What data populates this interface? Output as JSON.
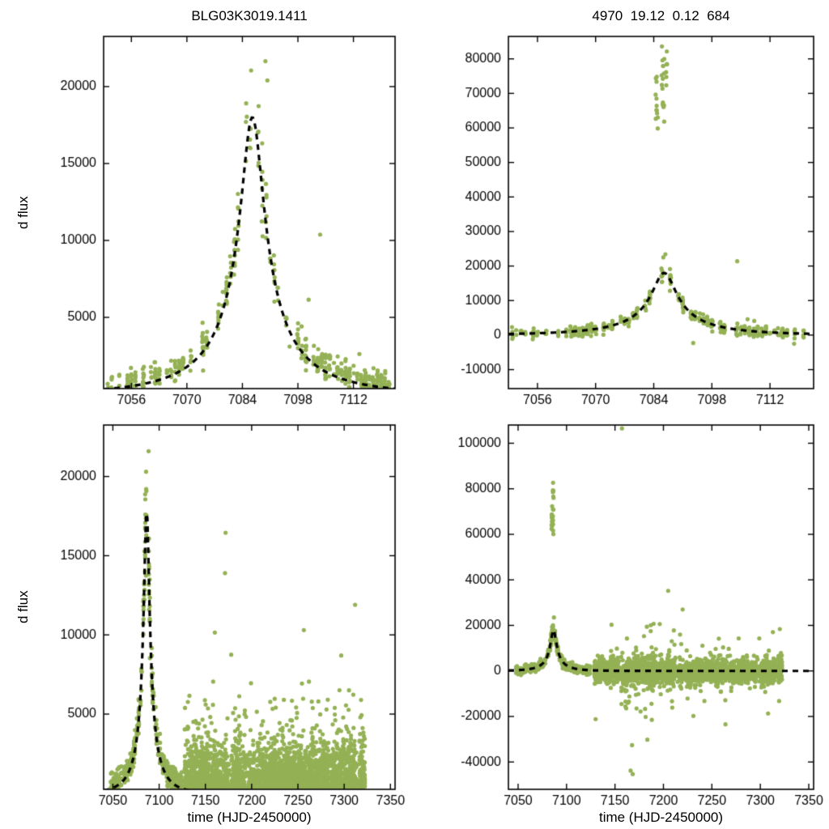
{
  "figure": {
    "background": "#ffffff",
    "marker_color": "#94b155",
    "model_color": "#000000",
    "axis_color": "#000000"
  },
  "chart_data": [
    {
      "id": "top-left",
      "type": "scatter",
      "title": "BLG03K3019.1411",
      "xlabel": "",
      "ylabel": "d flux",
      "xlim": [
        7049,
        7122.5
      ],
      "ylim": [
        370,
        23260
      ],
      "xticks": [
        7056,
        7070,
        7084,
        7098,
        7112
      ],
      "yticks": [
        5000,
        10000,
        15000,
        20000
      ],
      "grid": false,
      "legend": "none",
      "marker_color": "#94b155",
      "model": {
        "name": "paczynski",
        "t0": 7086.5,
        "tE": 25,
        "u0": 0.12,
        "fs": 2440,
        "baseline": 0,
        "peak_flux": 18000,
        "style": "dashed",
        "color": "#000000"
      },
      "seed": 7,
      "scatter_groups": [
        {
          "kind": "nightly",
          "t0": 7050,
          "t1": 7121,
          "p": 0.78,
          "nmin": 2,
          "nmax": 13,
          "use_model": true,
          "rel": 0.1,
          "abs": 380,
          "base": 350,
          "ymin": 380,
          "tspread": 0.3
        },
        {
          "kind": "fixed",
          "pts": [
            [
              7089.8,
              21650
            ],
            [
              7090.3,
              20400
            ],
            [
              7086.2,
              21050
            ],
            [
              7103.6,
              10380
            ],
            [
              7100.7,
              6150
            ],
            [
              7095.9,
              3100
            ],
            [
              7113.5,
              2620
            ]
          ]
        }
      ]
    },
    {
      "id": "top-right",
      "type": "scatter",
      "title": "4970  19.12  0.12  684",
      "xlabel": "",
      "ylabel": "",
      "xlim": [
        7049,
        7122.5
      ],
      "ylim": [
        -15500,
        86500
      ],
      "xticks": [
        7056,
        7070,
        7084,
        7098,
        7112
      ],
      "yticks": [
        -10000,
        0,
        10000,
        20000,
        30000,
        40000,
        50000,
        60000,
        70000,
        80000
      ],
      "grid": false,
      "legend": "none",
      "marker_color": "#94b155",
      "model": {
        "name": "paczynski",
        "t0": 7086.5,
        "tE": 25,
        "u0": 0.12,
        "fs": 2440,
        "baseline": 0,
        "peak_flux": 18000,
        "style": "dashed",
        "color": "#000000"
      },
      "seed": 13,
      "scatter_groups": [
        {
          "kind": "nightly",
          "t0": 7050,
          "t1": 7121,
          "p": 0.78,
          "nmin": 2,
          "nmax": 12,
          "use_model": true,
          "rel": 0.07,
          "abs": 800,
          "base": 0,
          "tspread": 0.3
        },
        {
          "kind": "cluster",
          "x0": 7084.4,
          "x1": 7085.1,
          "y0": 59000,
          "y1": 75500,
          "n": 12
        },
        {
          "kind": "cluster",
          "x0": 7085.9,
          "x1": 7086.6,
          "y0": 58500,
          "y1": 85500,
          "n": 16
        },
        {
          "kind": "cluster",
          "x0": 7086.9,
          "x1": 7087.4,
          "y0": 72000,
          "y1": 85000,
          "n": 6
        },
        {
          "kind": "fixed",
          "pts": [
            [
              7086.8,
              23400
            ],
            [
              7086.3,
              22500
            ],
            [
              7104.1,
              21400
            ],
            [
              7106.6,
              4600
            ],
            [
              7108.2,
              4100
            ],
            [
              7093.5,
              -2300
            ],
            [
              7117.8,
              -2500
            ]
          ]
        }
      ]
    },
    {
      "id": "bottom-left",
      "type": "scatter",
      "title": "",
      "xlabel": "time (HJD-2450000)",
      "ylabel": "d flux",
      "xlim": [
        7040,
        7355
      ],
      "ylim": [
        250,
        23250
      ],
      "xticks": [
        7050,
        7100,
        7150,
        7200,
        7250,
        7300,
        7350
      ],
      "yticks": [
        5000,
        10000,
        15000,
        20000
      ],
      "grid": false,
      "legend": "none",
      "marker_color": "#94b155",
      "model": {
        "name": "paczynski",
        "t0": 7086.5,
        "tE": 25,
        "u0": 0.12,
        "fs": 2440,
        "baseline": 0,
        "peak_flux": 18000,
        "style": "dashed",
        "color": "#000000"
      },
      "seed": 21,
      "scatter_groups": [
        {
          "kind": "nightly",
          "t0": 7048,
          "t1": 7124,
          "p": 0.8,
          "nmin": 2,
          "nmax": 12,
          "use_model": true,
          "rel": 0.1,
          "abs": 360,
          "base": 330,
          "ymin": 260,
          "tspread": 0.5
        },
        {
          "kind": "band",
          "t0": 7128,
          "t1": 7322,
          "p": 0.93,
          "nmin": 3,
          "nmax": 26,
          "base": 120,
          "sigma": 1400,
          "tail_p": 0.05,
          "tail_max": 4800
        },
        {
          "kind": "fixed",
          "pts": [
            [
              7088.6,
              21600
            ],
            [
              7085.9,
              20300
            ],
            [
              7160.2,
              10150
            ],
            [
              7171.8,
              16450
            ],
            [
              7171.2,
              13900
            ],
            [
              7177.9,
              8750
            ],
            [
              7158.4,
              7050
            ],
            [
              7199.3,
              6950
            ],
            [
              7205.6,
              5150
            ],
            [
              7256.4,
              10300
            ],
            [
              7261.9,
              7050
            ],
            [
              7272.1,
              5800
            ],
            [
              7296.8,
              8700
            ],
            [
              7305.2,
              6500
            ],
            [
              7311.8,
              11900
            ],
            [
              7317.5,
              4800
            ],
            [
              7150.3,
              5600
            ],
            [
              7143.2,
              4400
            ],
            [
              7234.8,
              5900
            ],
            [
              7243.5,
              4600
            ]
          ]
        }
      ]
    },
    {
      "id": "bottom-right",
      "type": "scatter",
      "title": "",
      "xlabel": "time (HJD-2450000)",
      "ylabel": "",
      "xlim": [
        7040,
        7355
      ],
      "ylim": [
        -52000,
        108000
      ],
      "xticks": [
        7050,
        7100,
        7150,
        7200,
        7250,
        7300,
        7350
      ],
      "yticks": [
        -40000,
        -20000,
        0,
        20000,
        40000,
        60000,
        80000,
        100000
      ],
      "grid": false,
      "legend": "none",
      "marker_color": "#94b155",
      "model": {
        "name": "paczynski",
        "t0": 7086.5,
        "tE": 25,
        "u0": 0.12,
        "fs": 2440,
        "baseline": 0,
        "peak_flux": 18000,
        "style": "dashed",
        "color": "#000000"
      },
      "seed": 29,
      "scatter_groups": [
        {
          "kind": "nightly",
          "t0": 7048,
          "t1": 7124,
          "p": 0.8,
          "nmin": 2,
          "nmax": 10,
          "use_model": true,
          "rel": 0.07,
          "abs": 900,
          "base": 0,
          "tspread": 0.3
        },
        {
          "kind": "band_sym",
          "t0": 7128,
          "t1": 7322,
          "p": 0.93,
          "nmin": 3,
          "nmax": 22,
          "base": 0,
          "sigma": 2600,
          "tail_p": 0.035,
          "tail_scale": 4.5
        },
        {
          "kind": "band_sym",
          "t0": 7156,
          "t1": 7190,
          "p": 0.7,
          "nmin": 1,
          "nmax": 4,
          "base": -3000,
          "sigma": 9000,
          "tail_p": 0.1,
          "tail_scale": 2.2
        },
        {
          "kind": "cluster",
          "x0": 7084.4,
          "x1": 7085.2,
          "y0": 59000,
          "y1": 76000,
          "n": 12
        },
        {
          "kind": "cluster",
          "x0": 7085.8,
          "x1": 7086.6,
          "y0": 60000,
          "y1": 85000,
          "n": 14
        },
        {
          "kind": "fixed",
          "pts": [
            [
              7157.2,
              106500
            ],
            [
              7168.3,
              -45300
            ],
            [
              7166.1,
              -43800
            ],
            [
              7183.4,
              -30200
            ],
            [
              7204.9,
              35200
            ],
            [
              7196.2,
              20600
            ],
            [
              7210.7,
              17800
            ],
            [
              7188.0,
              -21500
            ],
            [
              7176.4,
              -17800
            ],
            [
              7242.3,
              -13200
            ],
            [
              7298.9,
              14300
            ],
            [
              7305.1,
              -9200
            ],
            [
              7151.9,
              9800
            ],
            [
              7308.8,
              8900
            ],
            [
              7087.0,
              23500
            ]
          ]
        }
      ]
    }
  ]
}
